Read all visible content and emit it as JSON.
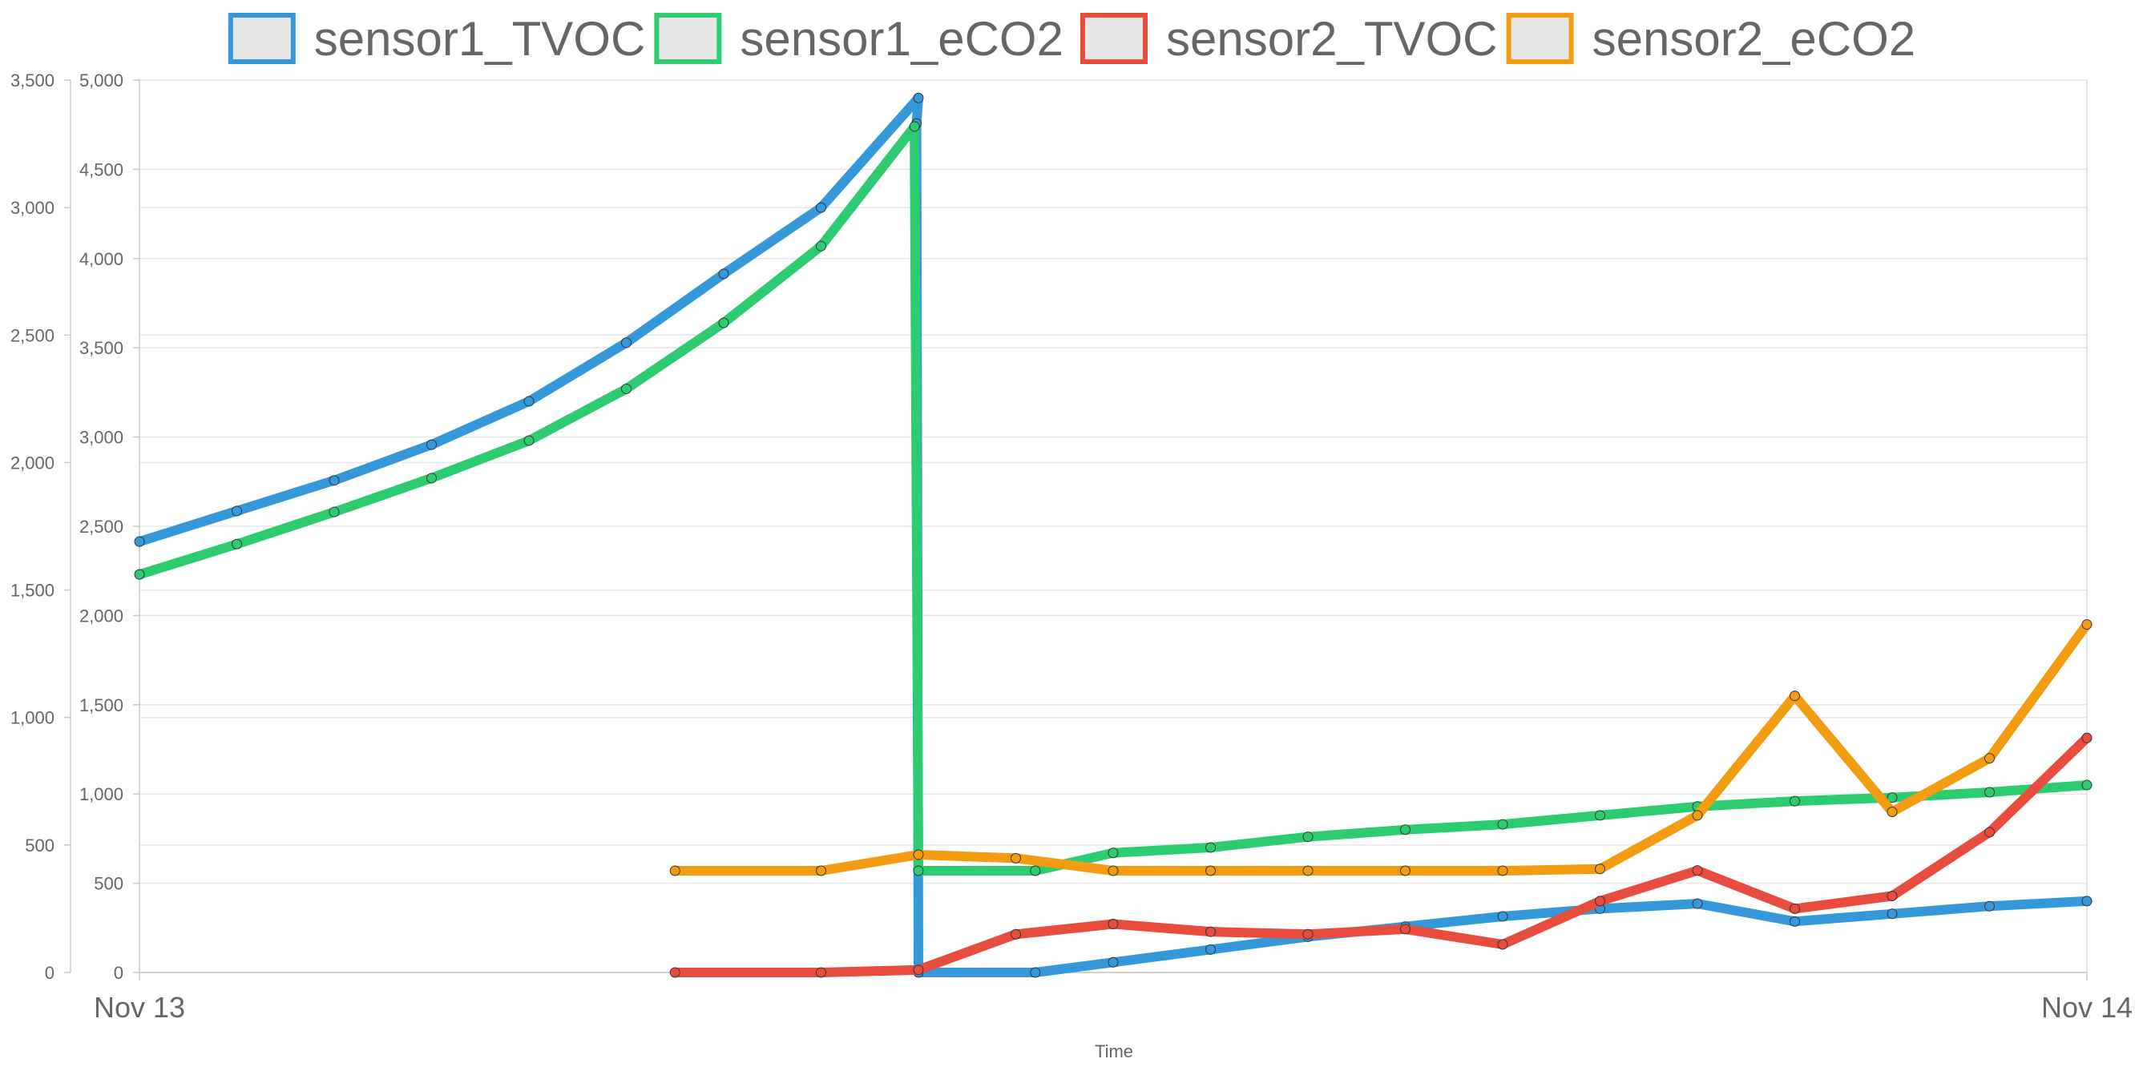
{
  "chart_data": {
    "type": "line",
    "legend_position": "top",
    "grid": true,
    "xlabel": "Time",
    "x_range": [
      "Nov 13",
      "Nov 14"
    ],
    "x_ticks": [
      "Nov 13",
      "Nov 14"
    ],
    "y_axes": [
      {
        "id": "y-left",
        "ylim": [
          0,
          3500
        ],
        "ticks": [
          "0",
          "500",
          "1,000",
          "1,500",
          "2,000",
          "2,500",
          "3,000",
          "3,500"
        ]
      },
      {
        "id": "y-right",
        "ylim": [
          0,
          5000
        ],
        "ticks": [
          "0",
          "500",
          "1,000",
          "1,500",
          "2,000",
          "2,500",
          "3,000",
          "3,500",
          "4,000",
          "4,500",
          "5,000"
        ]
      }
    ],
    "series": [
      {
        "name": "sensor1_TVOC",
        "color": "#3498db",
        "axis": "y-left",
        "x": [
          0,
          0.05,
          0.1,
          0.15,
          0.2,
          0.25,
          0.3,
          0.35,
          0.4,
          0.399,
          0.4,
          0.46,
          0.5,
          0.55,
          0.6,
          0.65,
          0.7,
          0.75,
          0.8,
          0.85,
          0.9,
          0.95,
          1.0
        ],
        "values": [
          1690,
          1810,
          1930,
          2070,
          2240,
          2470,
          2740,
          3000,
          3430,
          3330,
          0,
          0,
          40,
          90,
          140,
          180,
          220,
          250,
          270,
          200,
          230,
          260,
          280
        ]
      },
      {
        "name": "sensor1_eCO2",
        "color": "#2ecc71",
        "axis": "y-right",
        "x": [
          0,
          0.05,
          0.1,
          0.15,
          0.2,
          0.25,
          0.3,
          0.35,
          0.398,
          0.4,
          0.46,
          0.5,
          0.55,
          0.6,
          0.65,
          0.7,
          0.75,
          0.8,
          0.85,
          0.9,
          0.95,
          1.0
        ],
        "values": [
          2230,
          2400,
          2580,
          2770,
          2980,
          3270,
          3640,
          4070,
          4740,
          570,
          570,
          670,
          700,
          760,
          800,
          830,
          880,
          930,
          960,
          980,
          1010,
          1050
        ]
      },
      {
        "name": "sensor2_TVOC",
        "color": "#e74c3c",
        "axis": "y-left",
        "x": [
          0.275,
          0.35,
          0.4,
          0.45,
          0.5,
          0.55,
          0.6,
          0.65,
          0.7,
          0.75,
          0.8,
          0.85,
          0.9,
          0.95,
          1.0
        ],
        "values": [
          0,
          0,
          10,
          150,
          190,
          160,
          150,
          170,
          110,
          280,
          400,
          250,
          300,
          550,
          920
        ]
      },
      {
        "name": "sensor2_eCO2",
        "color": "#f39c12",
        "axis": "y-right",
        "x": [
          0.275,
          0.35,
          0.4,
          0.45,
          0.5,
          0.55,
          0.6,
          0.65,
          0.7,
          0.75,
          0.8,
          0.85,
          0.9,
          0.95,
          1.0
        ],
        "values": [
          570,
          570,
          660,
          640,
          570,
          570,
          570,
          570,
          570,
          580,
          880,
          1550,
          900,
          1200,
          1950
        ]
      }
    ]
  }
}
